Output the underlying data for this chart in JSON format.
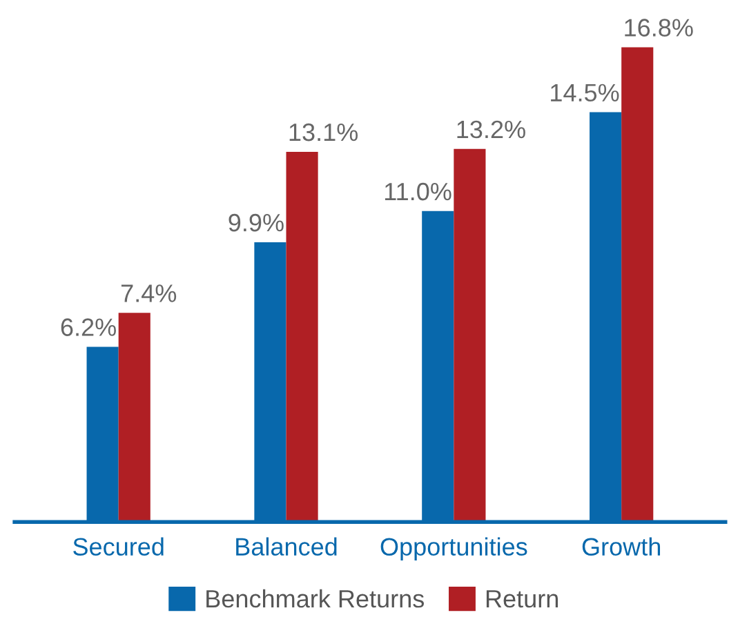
{
  "chart_data": {
    "type": "bar",
    "categories": [
      "Secured",
      "Balanced",
      "Opportunities",
      "Growth"
    ],
    "series": [
      {
        "name": "Benchmark Returns",
        "color": "#0868ac",
        "values": [
          6.2,
          9.9,
          11.0,
          14.5
        ],
        "value_labels": [
          "6.2%",
          "9.9%",
          "11.0%",
          "14.5%"
        ]
      },
      {
        "name": "Return",
        "color": "#b01f24",
        "values": [
          7.4,
          13.1,
          13.2,
          16.8
        ],
        "value_labels": [
          "7.4%",
          "13.1%",
          "13.2%",
          "16.8%"
        ]
      }
    ],
    "tick_labels": "x",
    "grid": false,
    "legend": "bottom"
  }
}
